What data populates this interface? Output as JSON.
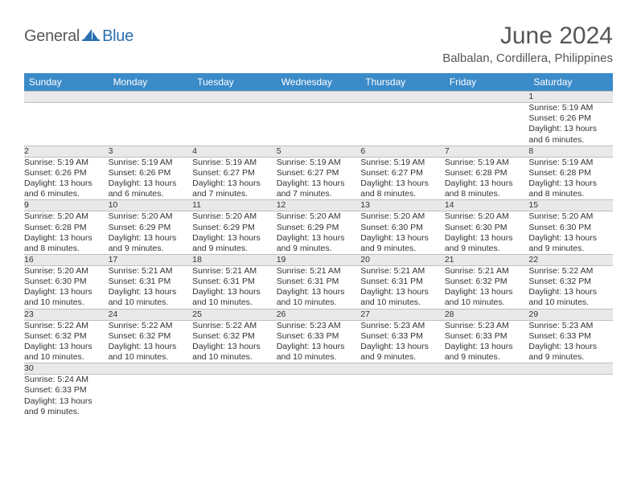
{
  "brand": {
    "part1": "General",
    "part2": "Blue"
  },
  "title": "June 2024",
  "location": "Balbalan, Cordillera, Philippines",
  "colors": {
    "header_bg": "#3b8bc9",
    "header_fg": "#ffffff",
    "daynum_bg": "#e9e9e9",
    "cell_border": "#bfbfbf",
    "brand_blue": "#2a6fb0",
    "brand_gray": "#5a5a5a"
  },
  "weekdays": [
    "Sunday",
    "Monday",
    "Tuesday",
    "Wednesday",
    "Thursday",
    "Friday",
    "Saturday"
  ],
  "weeks": [
    [
      null,
      null,
      null,
      null,
      null,
      null,
      {
        "n": "1",
        "sr": "5:19 AM",
        "ss": "6:26 PM",
        "dh": "13",
        "dm": "6"
      }
    ],
    [
      {
        "n": "2",
        "sr": "5:19 AM",
        "ss": "6:26 PM",
        "dh": "13",
        "dm": "6"
      },
      {
        "n": "3",
        "sr": "5:19 AM",
        "ss": "6:26 PM",
        "dh": "13",
        "dm": "6"
      },
      {
        "n": "4",
        "sr": "5:19 AM",
        "ss": "6:27 PM",
        "dh": "13",
        "dm": "7"
      },
      {
        "n": "5",
        "sr": "5:19 AM",
        "ss": "6:27 PM",
        "dh": "13",
        "dm": "7"
      },
      {
        "n": "6",
        "sr": "5:19 AM",
        "ss": "6:27 PM",
        "dh": "13",
        "dm": "8"
      },
      {
        "n": "7",
        "sr": "5:19 AM",
        "ss": "6:28 PM",
        "dh": "13",
        "dm": "8"
      },
      {
        "n": "8",
        "sr": "5:19 AM",
        "ss": "6:28 PM",
        "dh": "13",
        "dm": "8"
      }
    ],
    [
      {
        "n": "9",
        "sr": "5:20 AM",
        "ss": "6:28 PM",
        "dh": "13",
        "dm": "8"
      },
      {
        "n": "10",
        "sr": "5:20 AM",
        "ss": "6:29 PM",
        "dh": "13",
        "dm": "9"
      },
      {
        "n": "11",
        "sr": "5:20 AM",
        "ss": "6:29 PM",
        "dh": "13",
        "dm": "9"
      },
      {
        "n": "12",
        "sr": "5:20 AM",
        "ss": "6:29 PM",
        "dh": "13",
        "dm": "9"
      },
      {
        "n": "13",
        "sr": "5:20 AM",
        "ss": "6:30 PM",
        "dh": "13",
        "dm": "9"
      },
      {
        "n": "14",
        "sr": "5:20 AM",
        "ss": "6:30 PM",
        "dh": "13",
        "dm": "9"
      },
      {
        "n": "15",
        "sr": "5:20 AM",
        "ss": "6:30 PM",
        "dh": "13",
        "dm": "9"
      }
    ],
    [
      {
        "n": "16",
        "sr": "5:20 AM",
        "ss": "6:30 PM",
        "dh": "13",
        "dm": "10"
      },
      {
        "n": "17",
        "sr": "5:21 AM",
        "ss": "6:31 PM",
        "dh": "13",
        "dm": "10"
      },
      {
        "n": "18",
        "sr": "5:21 AM",
        "ss": "6:31 PM",
        "dh": "13",
        "dm": "10"
      },
      {
        "n": "19",
        "sr": "5:21 AM",
        "ss": "6:31 PM",
        "dh": "13",
        "dm": "10"
      },
      {
        "n": "20",
        "sr": "5:21 AM",
        "ss": "6:31 PM",
        "dh": "13",
        "dm": "10"
      },
      {
        "n": "21",
        "sr": "5:21 AM",
        "ss": "6:32 PM",
        "dh": "13",
        "dm": "10"
      },
      {
        "n": "22",
        "sr": "5:22 AM",
        "ss": "6:32 PM",
        "dh": "13",
        "dm": "10"
      }
    ],
    [
      {
        "n": "23",
        "sr": "5:22 AM",
        "ss": "6:32 PM",
        "dh": "13",
        "dm": "10"
      },
      {
        "n": "24",
        "sr": "5:22 AM",
        "ss": "6:32 PM",
        "dh": "13",
        "dm": "10"
      },
      {
        "n": "25",
        "sr": "5:22 AM",
        "ss": "6:32 PM",
        "dh": "13",
        "dm": "10"
      },
      {
        "n": "26",
        "sr": "5:23 AM",
        "ss": "6:33 PM",
        "dh": "13",
        "dm": "10"
      },
      {
        "n": "27",
        "sr": "5:23 AM",
        "ss": "6:33 PM",
        "dh": "13",
        "dm": "9"
      },
      {
        "n": "28",
        "sr": "5:23 AM",
        "ss": "6:33 PM",
        "dh": "13",
        "dm": "9"
      },
      {
        "n": "29",
        "sr": "5:23 AM",
        "ss": "6:33 PM",
        "dh": "13",
        "dm": "9"
      }
    ],
    [
      {
        "n": "30",
        "sr": "5:24 AM",
        "ss": "6:33 PM",
        "dh": "13",
        "dm": "9"
      },
      null,
      null,
      null,
      null,
      null,
      null
    ]
  ],
  "labels": {
    "sunrise": "Sunrise:",
    "sunset": "Sunset:",
    "daylight_prefix": "Daylight:",
    "hours_word": "hours",
    "and_word": "and",
    "minutes_word": "minutes."
  }
}
